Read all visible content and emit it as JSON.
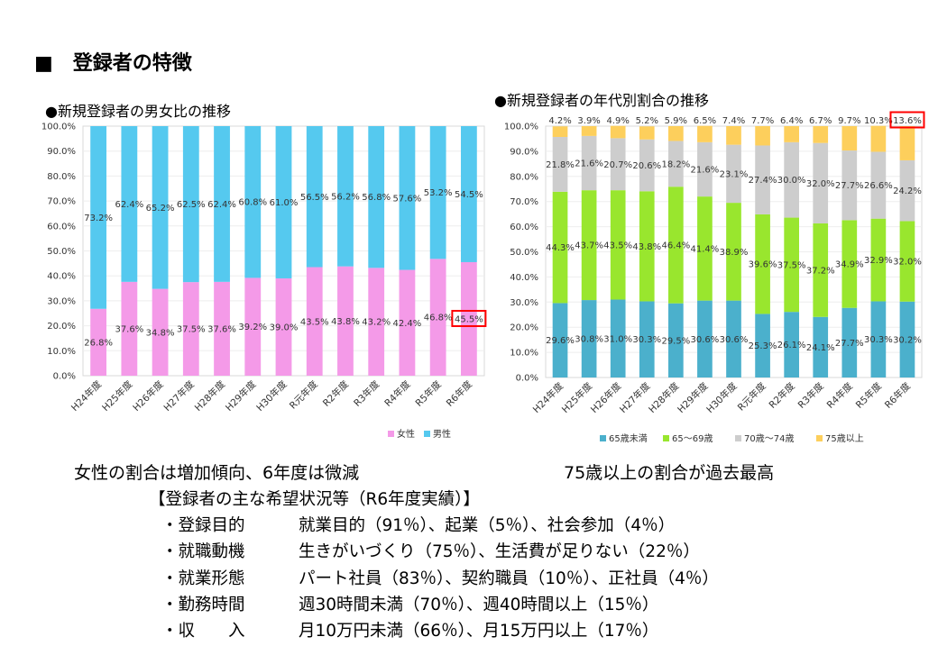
{
  "section_title": "■　登録者の特徴",
  "summary_left": "女性の割合は増加傾向、6年度は微減",
  "summary_right": "75歳以上の割合が過去最高",
  "details": {
    "title": "【登録者の主な希望状況等（R6年度実績）】",
    "rows": [
      {
        "label": "・登録目的",
        "value": "就業目的（91％）、起業（5％）、社会参加（4％）"
      },
      {
        "label": "・就職動機",
        "value": "生きがいづくり（75％）、生活費が足りない（22％）"
      },
      {
        "label": "・就業形態",
        "value": "パート社員（83％）、契約職員（10％）、正社員（4％）"
      },
      {
        "label": "・勤務時間",
        "value": "週30時間未満（70％）、週40時間以上（15％）"
      },
      {
        "label": "・収　　入",
        "value": "月10万円未満（66％）、月15万円以上（17％）"
      }
    ]
  },
  "chart_data": [
    {
      "type": "bar",
      "stacked": true,
      "title": "●新規登録者の男女比の推移",
      "categories": [
        "H24年度",
        "H25年度",
        "H26年度",
        "H27年度",
        "H28年度",
        "H29年度",
        "H30年度",
        "R元年度",
        "R2年度",
        "R3年度",
        "R4年度",
        "R5年度",
        "R6年度"
      ],
      "series": [
        {
          "name": "女性",
          "color": "#f49ae8",
          "values": [
            26.8,
            37.6,
            34.8,
            37.5,
            37.6,
            39.2,
            39.0,
            43.5,
            43.8,
            43.2,
            42.4,
            46.8,
            45.5
          ],
          "labels": [
            "26.8%",
            "37.6%",
            "34.8%",
            "37.5%",
            "37.6%",
            "39.2%",
            "39.0%",
            "43.5%",
            "43.8%",
            "43.2%",
            "42.4%",
            "46.8%",
            "45.5%"
          ]
        },
        {
          "name": "男性",
          "color": "#55c9ef",
          "values": [
            73.2,
            62.4,
            65.2,
            62.5,
            62.4,
            60.8,
            61.0,
            56.5,
            56.2,
            56.8,
            57.6,
            53.2,
            54.5
          ],
          "labels": [
            "73.2%",
            "62.4%",
            "65.2%",
            "62.5%",
            "62.4%",
            "60.8%",
            "61.0%",
            "56.5%",
            "56.2%",
            "56.8%",
            "57.6%",
            "53.2%",
            "54.5%"
          ]
        }
      ],
      "ylim": [
        0,
        100
      ],
      "yticks": [
        "0.0%",
        "10.0%",
        "20.0%",
        "30.0%",
        "40.0%",
        "50.0%",
        "60.0%",
        "70.0%",
        "80.0%",
        "90.0%",
        "100.0%"
      ],
      "legend_position": "bottom",
      "highlight": {
        "series": 0,
        "category": 12,
        "color": "#ff0000"
      }
    },
    {
      "type": "bar",
      "stacked": true,
      "title": "●新規登録者の年代別割合の推移",
      "categories": [
        "H24年度",
        "H25年度",
        "H26年度",
        "H27年度",
        "H28年度",
        "H29年度",
        "H30年度",
        "R元年度",
        "R2年度",
        "R3年度",
        "R4年度",
        "R5年度",
        "R6年度"
      ],
      "series": [
        {
          "name": "65歳未満",
          "color": "#4bb0cc",
          "values": [
            29.6,
            30.8,
            31.0,
            30.3,
            29.5,
            30.6,
            30.6,
            25.3,
            26.1,
            24.1,
            27.7,
            30.3,
            30.2
          ],
          "labels": [
            "29.6%",
            "30.8%",
            "31.0%",
            "30.3%",
            "29.5%",
            "30.6%",
            "30.6%",
            "25.3%",
            "26.1%",
            "24.1%",
            "27.7%",
            "30.3%",
            "30.2%"
          ]
        },
        {
          "name": "65～69歳",
          "color": "#99e62e",
          "values": [
            44.3,
            43.7,
            43.5,
            43.8,
            46.4,
            41.4,
            38.9,
            39.6,
            37.5,
            37.2,
            34.9,
            32.9,
            32.0
          ],
          "labels": [
            "44.3%",
            "43.7%",
            "43.5%",
            "43.8%",
            "46.4%",
            "41.4%",
            "38.9%",
            "39.6%",
            "37.5%",
            "37.2%",
            "34.9%",
            "32.9%",
            "32.0%"
          ]
        },
        {
          "name": "70歳～74歳",
          "color": "#cdcdcd",
          "values": [
            21.8,
            21.6,
            20.7,
            20.6,
            18.2,
            21.6,
            23.1,
            27.4,
            30.0,
            32.0,
            27.7,
            26.6,
            24.2
          ],
          "labels": [
            "21.8%",
            "21.6%",
            "20.7%",
            "20.6%",
            "18.2%",
            "21.6%",
            "23.1%",
            "27.4%",
            "30.0%",
            "32.0%",
            "27.7%",
            "26.6%",
            "24.2%"
          ]
        },
        {
          "name": "75歳以上",
          "color": "#fdcf5c",
          "values": [
            4.2,
            3.9,
            4.9,
            5.2,
            5.9,
            6.5,
            7.4,
            7.7,
            6.4,
            6.7,
            9.7,
            10.3,
            13.6
          ],
          "labels": [
            "4.2%",
            "3.9%",
            "4.9%",
            "5.2%",
            "5.9%",
            "6.5%",
            "7.4%",
            "7.7%",
            "6.4%",
            "6.7%",
            "9.7%",
            "10.3%",
            "13.6%"
          ]
        }
      ],
      "ylim": [
        0,
        100
      ],
      "yticks": [
        "0.0%",
        "10.0%",
        "20.0%",
        "30.0%",
        "40.0%",
        "50.0%",
        "60.0%",
        "70.0%",
        "80.0%",
        "90.0%",
        "100.0%"
      ],
      "legend_position": "bottom",
      "highlight": {
        "series": 3,
        "category": 12,
        "color": "#ff0000"
      }
    }
  ]
}
